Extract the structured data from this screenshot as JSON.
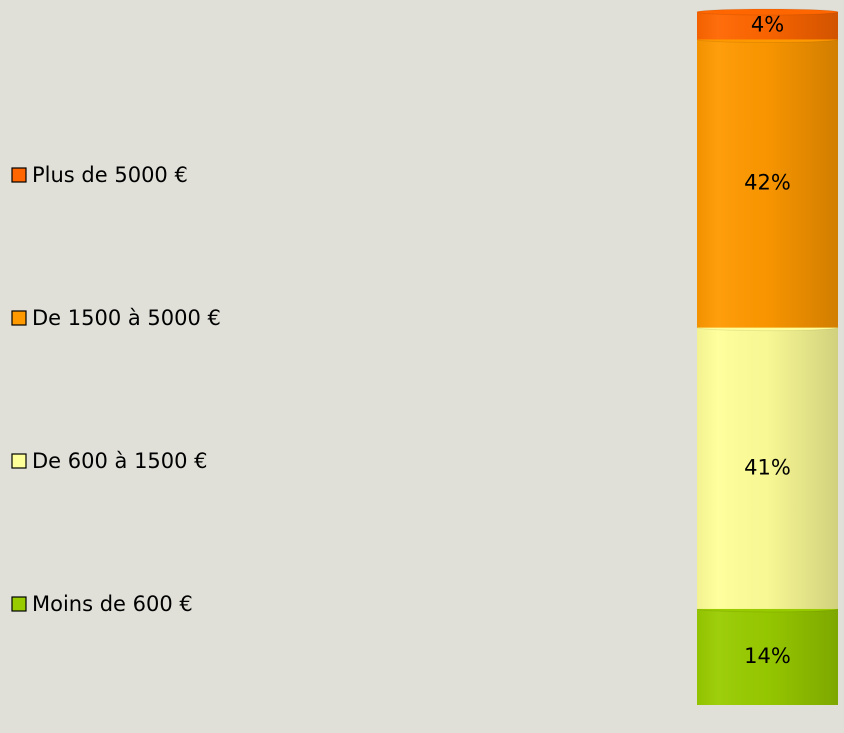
{
  "chart_data": {
    "type": "bar",
    "stacked": true,
    "categories": [
      null
    ],
    "series": [
      {
        "name": "Moins de 600 €",
        "color": "#99cc00",
        "values": [
          14
        ],
        "value_labels": [
          "14%"
        ]
      },
      {
        "name": "De 600 à 1500 €",
        "color": "#ffff99",
        "values": [
          41
        ],
        "value_labels": [
          "41%"
        ]
      },
      {
        "name": "De 1500 à 5000 €",
        "color": "#ff9900",
        "values": [
          42
        ],
        "value_labels": [
          "42%"
        ]
      },
      {
        "name": "Plus de 5000 €",
        "color": "#ff6600",
        "values": [
          4
        ],
        "value_labels": [
          "4%"
        ]
      }
    ],
    "legend": "left"
  }
}
